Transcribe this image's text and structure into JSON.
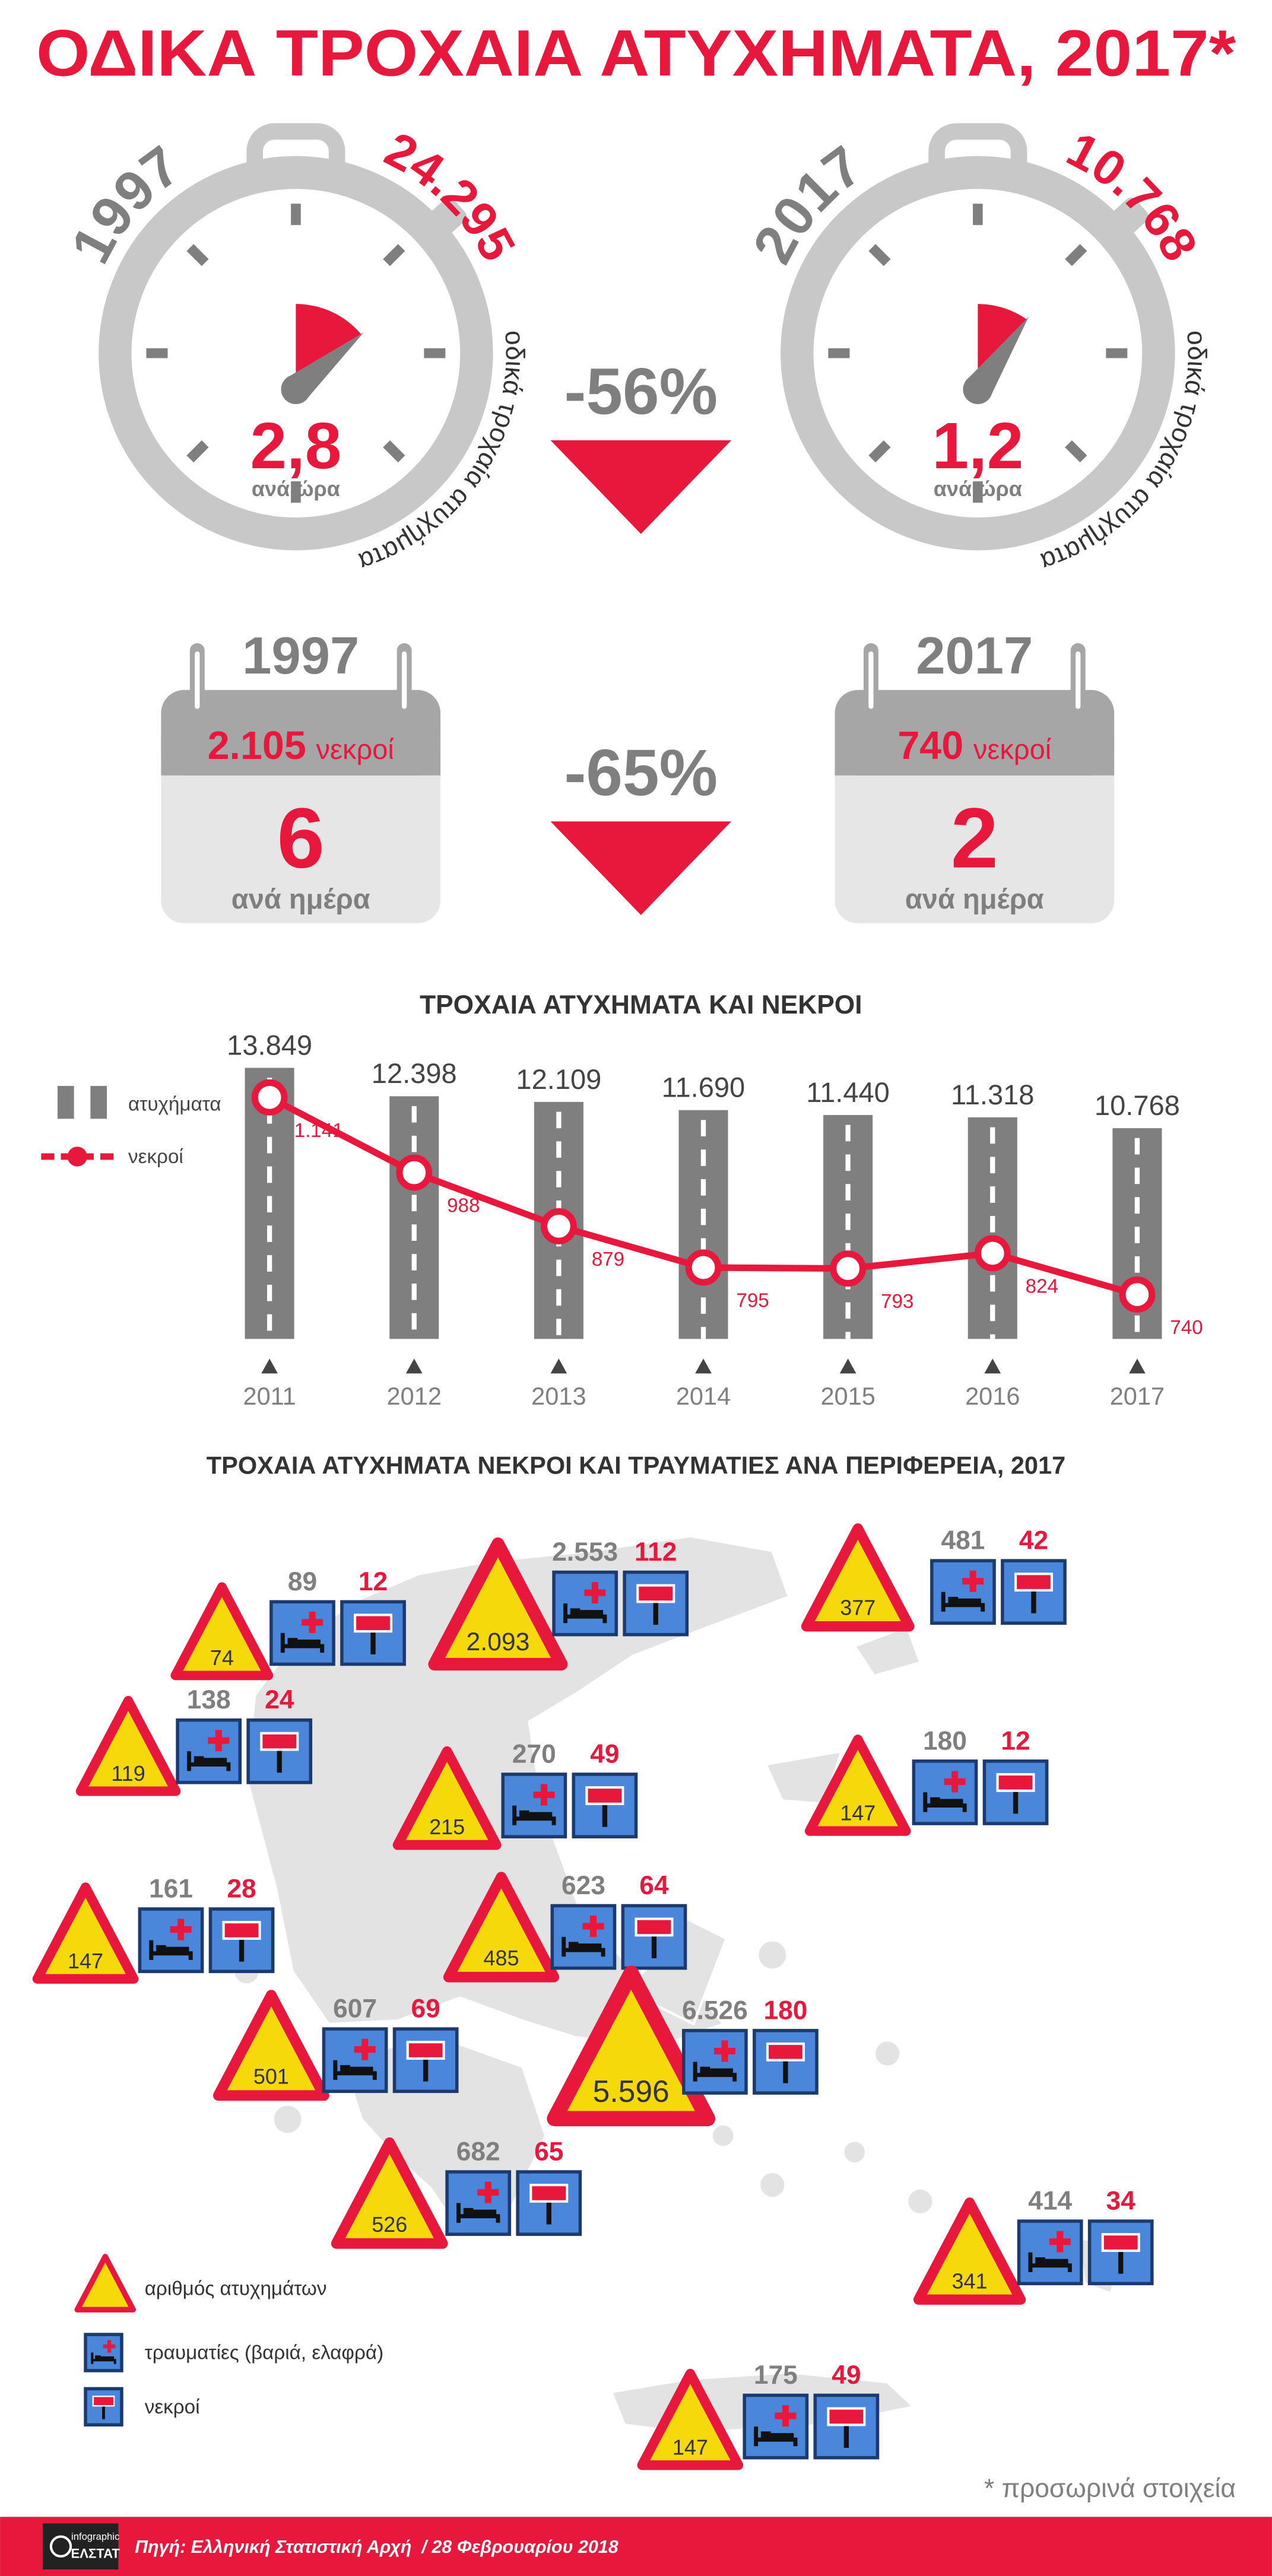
{
  "title": "ΟΔΙΚΑ ΤΡΟΧΑΙΑ ΑΤΥΧΗΜΑΤΑ, 2017*",
  "stopwatches": [
    {
      "year": "1997",
      "accidents": "24.295",
      "caption": "οδικά τροχαία ατυχήματα",
      "rate": "2,8",
      "rate_unit": "ανά ώρα"
    },
    {
      "year": "2017",
      "accidents": "10.768",
      "caption": "οδικά τροχαία ατυχήματα",
      "rate": "1,2",
      "rate_unit": "ανά ώρα"
    }
  ],
  "accidents_change": "-56%",
  "calendars": [
    {
      "year": "1997",
      "deaths": "2.105",
      "deaths_unit": "νεκροί",
      "per_day": "6",
      "per_day_unit": "ανά ημέρα"
    },
    {
      "year": "2017",
      "deaths": "740",
      "deaths_unit": "νεκροί",
      "per_day": "2",
      "per_day_unit": "ανά ημέρα"
    }
  ],
  "deaths_change": "-65%",
  "chart_data": {
    "type": "bar",
    "title": "ΤΡΟΧΑΙΑ ΑΤΥΧΗΜΑΤΑ ΚΑΙ ΝΕΚΡΟΙ",
    "categories": [
      "2011",
      "2012",
      "2013",
      "2014",
      "2015",
      "2016",
      "2017"
    ],
    "series": [
      {
        "name": "ατυχήματα",
        "color": "#7f7f7f",
        "values": [
          13849,
          12398,
          12109,
          11690,
          11440,
          11318,
          10768
        ],
        "value_labels": [
          "13.849",
          "12.398",
          "12.109",
          "11.690",
          "11.440",
          "11.318",
          "10.768"
        ]
      },
      {
        "name": "νεκροί",
        "color": "#e8183c",
        "type": "line",
        "values": [
          1141,
          988,
          879,
          795,
          793,
          824,
          740
        ],
        "value_labels": [
          "1.141",
          "988",
          "879",
          "795",
          "793",
          "824",
          "740"
        ]
      }
    ]
  },
  "map": {
    "title": "ΤΡΟΧΑΙΑ ΑΤΥΧΗΜΑΤΑ ΝΕΚΡΟΙ ΚΑΙ ΤΡΑΥΜΑΤΙΕΣ ΑΝΑ ΠΕΡΙΦΕΡΕΙΑ, 2017",
    "accidents": {
      "values": [
        74,
        2093,
        377,
        119,
        215,
        147,
        147,
        485,
        501,
        5596,
        526,
        341,
        147
      ],
      "value_labels": [
        "74",
        "2.093",
        "377",
        "119",
        "215",
        "147",
        "147",
        "485",
        "501",
        "5.596",
        "526",
        "341",
        "147"
      ]
    },
    "injured": {
      "values": [
        89,
        2553,
        481,
        138,
        270,
        180,
        161,
        623,
        607,
        6526,
        682,
        414,
        175
      ],
      "value_labels": [
        "89",
        "2.553",
        "481",
        "138",
        "270",
        "180",
        "161",
        "623",
        "607",
        "6.526",
        "682",
        "414",
        "175"
      ]
    },
    "deaths": {
      "values": [
        12,
        112,
        42,
        24,
        49,
        12,
        28,
        64,
        69,
        180,
        65,
        34,
        49
      ]
    },
    "legend": [
      "αριθμός ατυχημάτων",
      "τραυματίες (βαριά, ελαφρά)",
      "νεκροί"
    ]
  },
  "note": "* προσωρινά στοιχεία",
  "footer": {
    "logo_top": "infographic",
    "logo_bottom": "ΕΛΣΤΑΤ",
    "source": "Πηγή: Ελληνική Στατιστική Αρχή  / 28 Φεβρουαρίου 2018"
  }
}
